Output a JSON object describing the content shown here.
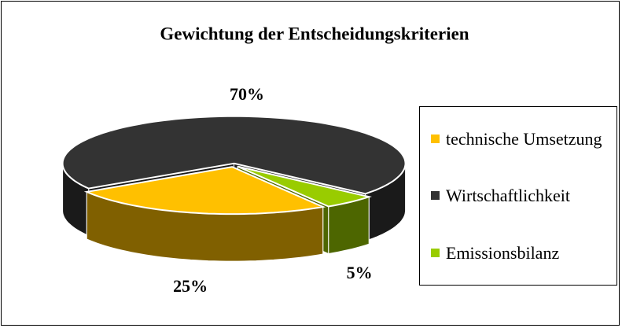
{
  "chart_data": {
    "type": "pie",
    "title": "Gewichtung der Entscheidungskriterien",
    "categories": [
      "technische Umsetzung",
      "Wirtschaftlichkeit",
      "Emissionsbilanz"
    ],
    "values": [
      25,
      70,
      5
    ],
    "value_labels": [
      "25%",
      "70%",
      "5%"
    ],
    "colors": [
      "#ffc000",
      "#333333",
      "#99cc00"
    ]
  }
}
